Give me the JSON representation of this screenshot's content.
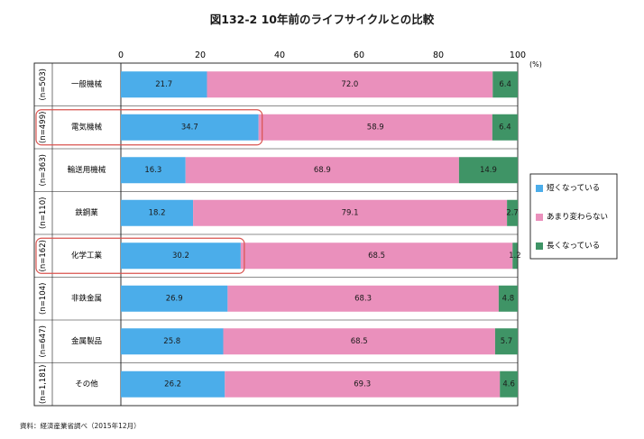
{
  "chart_data": {
    "type": "bar",
    "stacked": true,
    "orientation": "horizontal",
    "title": "図132-2 10年前のライフサイクルとの比較",
    "unit": "(%)",
    "xlim": [
      0,
      100
    ],
    "xticks": [
      0,
      20,
      40,
      60,
      80,
      100
    ],
    "grid": false,
    "legend_position": "right",
    "categories": [
      "一般機械",
      "電気機械",
      "輸送用機械",
      "鉄鋼業",
      "化学工業",
      "非鉄金属",
      "金属製品",
      "その他"
    ],
    "sample_sizes": [
      "(n=503)",
      "(n=499)",
      "(n=363)",
      "(n=110)",
      "(n=162)",
      "(n=104)",
      "(n=647)",
      "(n=1,181)"
    ],
    "highlighted": [
      "電気機械",
      "化学工業"
    ],
    "series": [
      {
        "name": "短くなっている",
        "color": "#4badea",
        "values": [
          21.7,
          34.7,
          16.3,
          18.2,
          30.2,
          26.9,
          25.8,
          26.2
        ],
        "labels": [
          "21.7",
          "34.7",
          "16.3",
          "18.2",
          "30.2",
          "26.9",
          "25.8",
          "26.2"
        ]
      },
      {
        "name": "あまり変わらない",
        "color": "#ea90bc",
        "values": [
          72.0,
          58.9,
          68.9,
          79.1,
          68.5,
          68.3,
          68.5,
          69.3
        ],
        "labels": [
          "72.0",
          "58.9",
          "68.9",
          "79.1",
          "68.5",
          "68.3",
          "68.5",
          "69.3"
        ]
      },
      {
        "name": "長くなっている",
        "color": "#3f9466",
        "values": [
          6.4,
          6.4,
          14.9,
          2.7,
          1.2,
          4.8,
          5.7,
          4.6
        ],
        "labels": [
          "6.4",
          "6.4",
          "14.9",
          "2.7",
          "1.2",
          "4.8",
          "5.7",
          "4.6"
        ]
      }
    ]
  },
  "source": "資料：経済産業省調べ（2015年12月）",
  "colors": {
    "highlight": "#d9534f",
    "frame": "#1a1a1a"
  }
}
